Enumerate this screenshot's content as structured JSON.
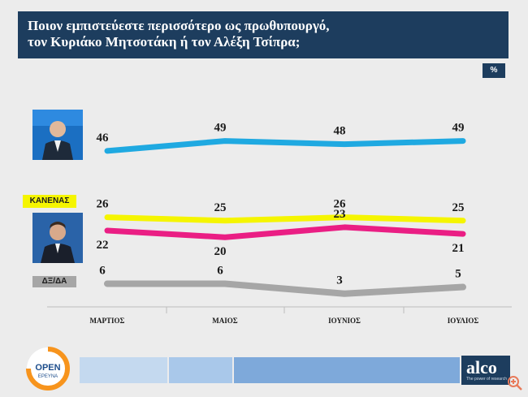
{
  "header": {
    "line1": "Ποιον εμπιστεύεστε περισσότερο ως πρωθυπουργό,",
    "line2": "τον Κυριάκο Μητσοτάκη ή τον Αλέξη Τσίπρα;"
  },
  "unit": "%",
  "labels": {
    "none": "ΚΑΝΕΝΑΣ",
    "dk": "ΔΞ/ΔΑ"
  },
  "colors": {
    "header": "#1d3d5e",
    "mitsotakis": "#1fa9e1",
    "none": "#f5f500",
    "tsipras": "#ea1e84",
    "dk": "#a6a6a6"
  },
  "chart_data": {
    "type": "line",
    "categories": [
      "ΜΑΡΤΙΟΣ",
      "ΜΑΙΟΣ",
      "ΙΟΥΝΙΟΣ",
      "ΙΟΥΛΙΟΣ"
    ],
    "series": [
      {
        "key": "mitsotakis",
        "values": [
          46,
          49,
          48,
          49
        ]
      },
      {
        "key": "none",
        "name": "ΚΑΝΕΝΑΣ",
        "values": [
          26,
          25,
          26,
          25
        ]
      },
      {
        "key": "tsipras",
        "values": [
          22,
          20,
          23,
          21
        ]
      },
      {
        "key": "dk",
        "name": "ΔΞ/ΔΑ",
        "values": [
          6,
          6,
          3,
          5
        ]
      }
    ],
    "ylim": [
      0,
      55
    ]
  },
  "footer": {
    "open_logo": {
      "word": "OPEN",
      "sub": "ΕΡΕΥΝΑ"
    },
    "alco_logo": {
      "word": "alco",
      "sub": "The power of research"
    }
  }
}
